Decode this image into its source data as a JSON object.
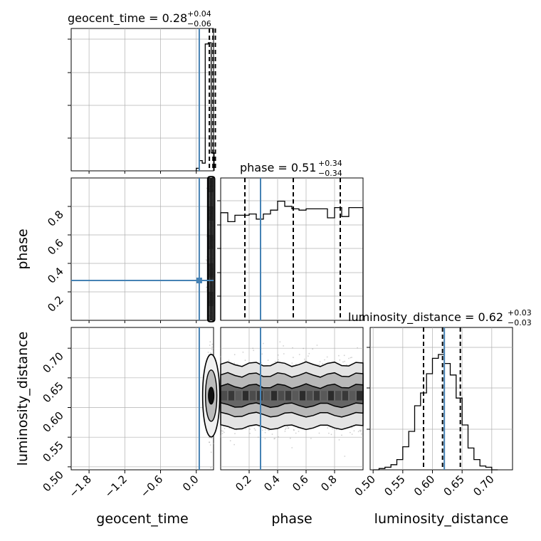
{
  "colors": {
    "truth": "#4682b4",
    "contour": "#000000",
    "grid": "#b0b0b0",
    "points": "#9a9a9a"
  },
  "chart_data": {
    "type": "corner",
    "parameters": [
      "geocent_time",
      "phase",
      "luminosity_distance"
    ],
    "titles": [
      {
        "base": "geocent_time = 0.28",
        "plus": "+0.04",
        "minus": "−0.06"
      },
      {
        "base": "phase = 0.51",
        "plus": "+0.34",
        "minus": "−0.34"
      },
      {
        "base": "luminosity_distance = 0.62",
        "plus": "+0.03",
        "minus": "−0.03"
      }
    ],
    "xlabels": [
      "geocent_time",
      "phase",
      "luminosity_distance"
    ],
    "ylabels": [
      "",
      "phase",
      "luminosity_distance"
    ],
    "truths": {
      "geocent_time": 0.05,
      "phase": 0.28,
      "luminosity_distance": 0.62
    },
    "ranges": {
      "geocent_time": [
        -2.1,
        0.29
      ],
      "phase": [
        0.0,
        1.0
      ],
      "luminosity_distance": [
        0.495,
        0.735
      ]
    },
    "ticks": {
      "geocent_time": [
        "−1.8",
        "−1.2",
        "−0.6",
        "0.0"
      ],
      "phase_x": [
        "0.2",
        "0.4",
        "0.6",
        "0.8"
      ],
      "phase_y": [
        "0.2",
        "0.4",
        "0.6",
        "0.8"
      ],
      "luminosity_distance": [
        "0.50",
        "0.55",
        "0.60",
        "0.65",
        "0.70"
      ]
    },
    "quantiles": {
      "geocent_time": [
        0.22,
        0.28,
        0.32
      ],
      "phase": [
        0.17,
        0.51,
        0.84
      ],
      "luminosity_distance": [
        0.585,
        0.617,
        0.647
      ]
    },
    "marginals": {
      "geocent_time": {
        "bins": [
          0.0,
          0.05,
          0.1,
          0.15,
          0.2,
          0.25,
          0.3
        ],
        "counts": [
          0.02,
          0.08,
          0.06,
          0.99,
          1.0,
          0.14
        ]
      },
      "phase": {
        "bins": [
          0.0,
          0.05,
          0.1,
          0.15,
          0.2,
          0.25,
          0.3,
          0.35,
          0.4,
          0.45,
          0.5,
          0.55,
          0.6,
          0.65,
          0.7,
          0.75,
          0.8,
          0.85,
          0.9,
          0.95,
          1.0
        ],
        "counts": [
          0.84,
          0.77,
          0.82,
          0.82,
          0.83,
          0.79,
          0.83,
          0.86,
          0.93,
          0.89,
          0.87,
          0.86,
          0.87,
          0.87,
          0.87,
          0.8,
          0.88,
          0.81,
          0.88,
          0.88
        ]
      },
      "luminosity_distance": {
        "bins": [
          0.5,
          0.51,
          0.52,
          0.53,
          0.54,
          0.55,
          0.56,
          0.57,
          0.58,
          0.59,
          0.6,
          0.61,
          0.62,
          0.63,
          0.64,
          0.65,
          0.66,
          0.67,
          0.68,
          0.69,
          0.7,
          0.71
        ],
        "counts": [
          0.0,
          0.01,
          0.02,
          0.04,
          0.08,
          0.18,
          0.3,
          0.5,
          0.6,
          0.75,
          0.87,
          0.9,
          0.83,
          0.74,
          0.56,
          0.35,
          0.17,
          0.08,
          0.03,
          0.02,
          0.0
        ]
      }
    },
    "grid": true
  }
}
